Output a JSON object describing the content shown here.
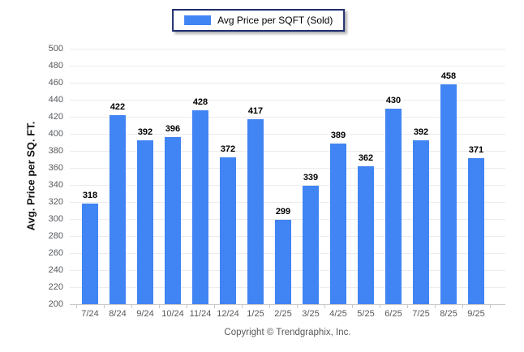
{
  "legend": {
    "label": "Avg Price per SQFT (Sold)",
    "swatch_color": "#4184f3"
  },
  "footer": {
    "copyright": "Copyright © Trendgraphix, Inc."
  },
  "colors": {
    "bar": "#4184f3",
    "gridline": "#ececec",
    "axis": "#c9c9c9",
    "tick_text": "#55585c",
    "value_label": "#000000",
    "legend_border": "#1f2d6e"
  },
  "chart_data": {
    "type": "bar",
    "title": "",
    "categories": [
      "7/24",
      "8/24",
      "9/24",
      "10/24",
      "11/24",
      "12/24",
      "1/25",
      "2/25",
      "3/25",
      "4/25",
      "5/25",
      "6/25",
      "7/25",
      "8/25",
      "9/25"
    ],
    "series": [
      {
        "name": "Avg Price per SQFT (Sold)",
        "values": [
          318,
          422,
          392,
          396,
          428,
          372,
          417,
          299,
          339,
          389,
          362,
          430,
          392,
          458,
          371
        ]
      }
    ],
    "xlabel": "",
    "ylabel": "Avg. Price per SQ. FT.",
    "ylim": [
      200,
      500
    ],
    "ytick_step": 20,
    "ytick_labels": [
      500,
      480,
      460,
      440,
      420,
      400,
      380,
      360,
      340,
      320,
      300,
      280,
      260,
      240,
      220,
      200
    ],
    "grid": true,
    "legend_position": "top-center",
    "value_labels": true,
    "bar_color": "#4184f3"
  }
}
